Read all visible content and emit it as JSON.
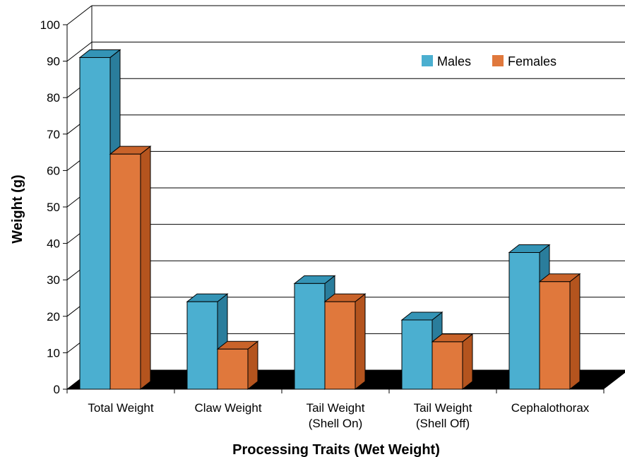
{
  "chart_data": {
    "type": "bar",
    "title": "",
    "xlabel": "Processing Traits (Wet Weight)",
    "ylabel": "Weight (g)",
    "ylim": [
      0,
      100
    ],
    "yticks": [
      "0",
      "10",
      "20",
      "30",
      "40",
      "50",
      "60",
      "70",
      "80",
      "90",
      "100"
    ],
    "categories": [
      [
        "Total Weight"
      ],
      [
        "Claw Weight"
      ],
      [
        "Tail Weight",
        "(Shell On)"
      ],
      [
        "Tail Weight",
        "(Shell Off)"
      ],
      [
        "Cephalothorax"
      ]
    ],
    "series": [
      {
        "name": "Males",
        "values": [
          91,
          24,
          29,
          19,
          37.5
        ]
      },
      {
        "name": "Females",
        "values": [
          64.5,
          11,
          24,
          13,
          29.5
        ]
      }
    ],
    "colors": {
      "males_front": "#4bafd0",
      "males_side": "#2a7d9c",
      "males_top": "#3494b6",
      "females_front": "#e0783c",
      "females_side": "#b4541e",
      "females_top": "#c9632a",
      "floor": "#000000",
      "grid": "#000000"
    },
    "grid": true,
    "legend_position": "top-right",
    "style": "3d-clustered-column"
  }
}
